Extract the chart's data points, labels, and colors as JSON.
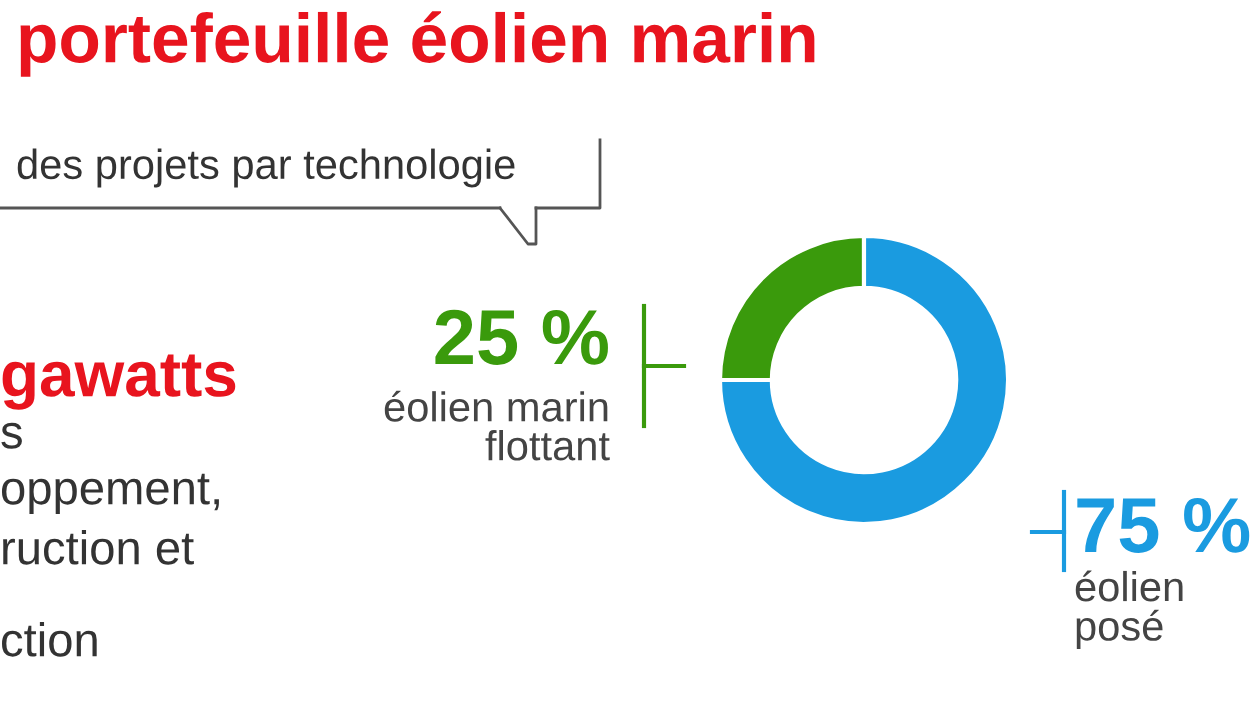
{
  "chart_data": {
    "type": "donut",
    "title": "portefeuille éolien marin",
    "subtitle": "des projets par technologie",
    "categories": [
      "éolien marin\nflottant",
      "éolien\nposé"
    ],
    "values": [
      25,
      75
    ],
    "colors": [
      "#3a9a0c",
      "#1a9be0"
    ],
    "value_labels": [
      "25 %",
      "75 %"
    ],
    "annotations": [
      "gawatts",
      "s",
      "oppement,",
      "ruction et",
      "ction"
    ]
  }
}
